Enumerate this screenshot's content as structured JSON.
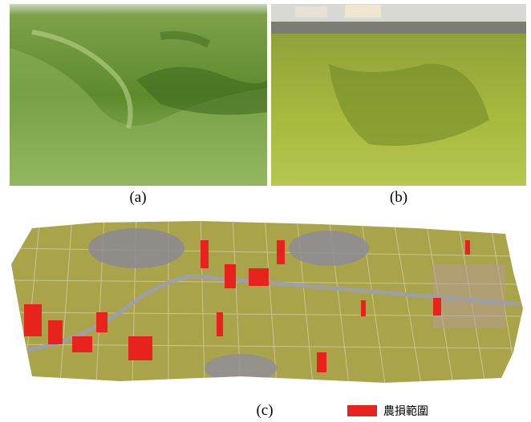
{
  "panels": [
    {
      "label": "(a)"
    },
    {
      "label": "(b)"
    },
    {
      "label": "(c)"
    }
  ],
  "legend": {
    "label": "農損範圍"
  }
}
